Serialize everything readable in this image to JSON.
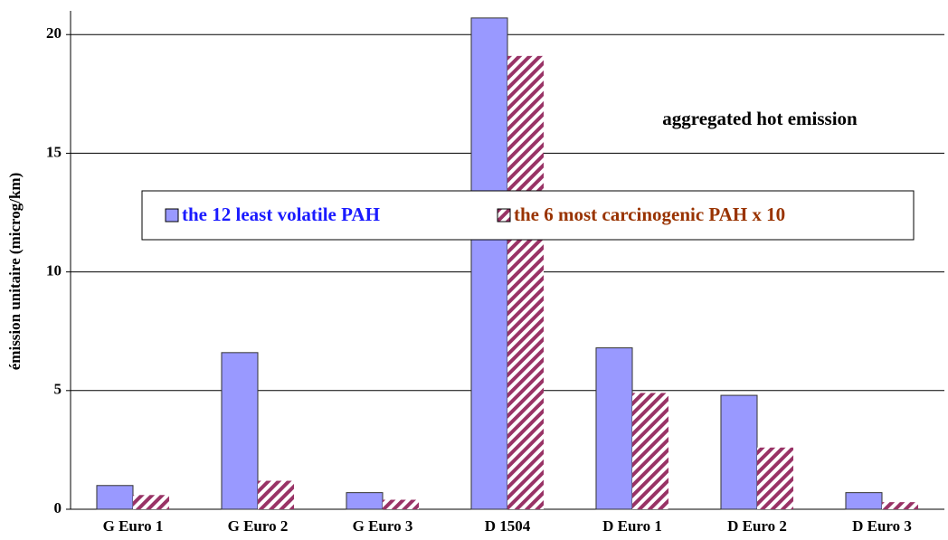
{
  "chart_data": {
    "type": "bar",
    "annotation": "aggregated hot emission",
    "y_label": "émission unitaire (microg/km)",
    "categories": [
      "G Euro 1",
      "G Euro 2",
      "G Euro 3",
      "D 1504",
      "D Euro 1",
      "D Euro 2",
      "D Euro 3"
    ],
    "series": [
      {
        "name": "the 12 least volatile PAH",
        "color": "#9999ff",
        "values": [
          1.0,
          6.6,
          0.7,
          20.7,
          6.8,
          4.8,
          0.7
        ]
      },
      {
        "name": "the 6 most carcinogenic PAH x 10",
        "color": "#993366",
        "values": [
          0.6,
          1.2,
          0.4,
          19.1,
          4.9,
          2.6,
          0.3
        ]
      }
    ],
    "ylim": [
      0,
      21
    ],
    "yticks": [
      0,
      5,
      10,
      15,
      20
    ],
    "grid": true
  }
}
